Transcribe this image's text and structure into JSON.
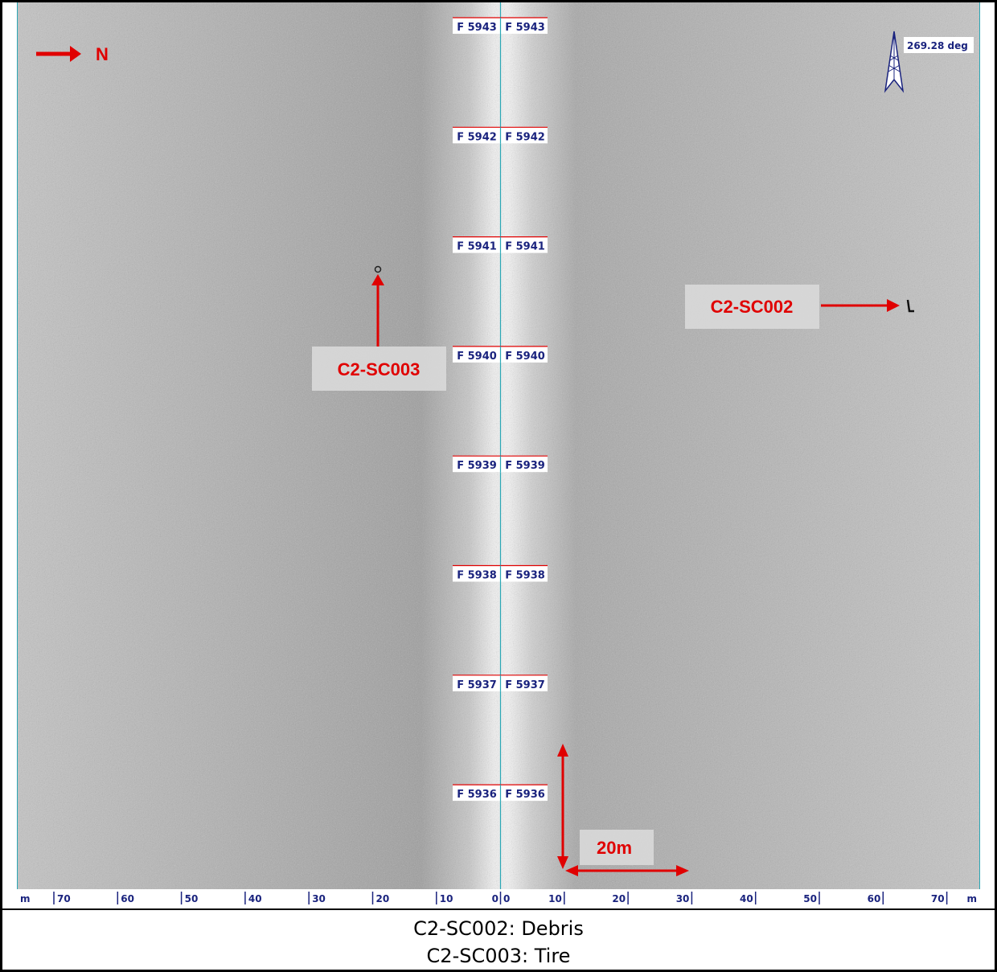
{
  "north_label": "N",
  "heading": "269.28 deg",
  "fix_labels": [
    "F 5943",
    "F 5942",
    "F 5941",
    "F 5940",
    "F 5939",
    "F 5938",
    "F 5937",
    "F 5936"
  ],
  "range_axis": {
    "unit": "m",
    "left_ticks": [
      "70",
      "60",
      "50",
      "40",
      "30",
      "20",
      "10",
      "0"
    ],
    "right_ticks": [
      "0",
      "10",
      "20",
      "30",
      "40",
      "50",
      "60",
      "70"
    ]
  },
  "targets": [
    {
      "id": "C2-SC002"
    },
    {
      "id": "C2-SC003"
    }
  ],
  "scale_label": "20m",
  "caption": [
    "C2-SC002: Debris",
    "C2-SC003: Tire"
  ],
  "colors": {
    "annotation": "#e00000",
    "fix_text": "#1a237e",
    "nadir_line": "#2aa7b5",
    "sonar_bg": "#b8b8b8"
  }
}
